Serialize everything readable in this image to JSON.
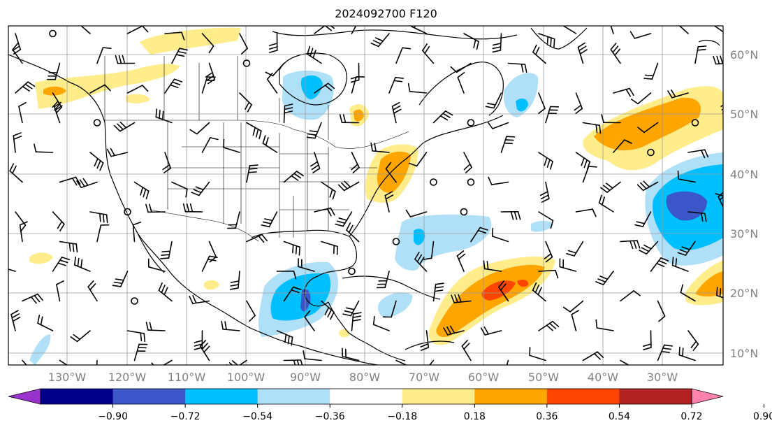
{
  "title": "2024092700 F120",
  "lon_labels": [
    "130°W",
    "120°W",
    "110°W",
    "100°W",
    "90°W",
    "80°W",
    "70°W",
    "60°W",
    "50°W",
    "40°W",
    "30°W"
  ],
  "lat_labels": [
    "60°N",
    "50°N",
    "40°N",
    "30°N",
    "20°N",
    "10°N"
  ],
  "colorbar": {
    "ticks": [
      "−0.90",
      "−0.72",
      "−0.54",
      "−0.36",
      "−0.18",
      "0.18",
      "0.36",
      "0.54",
      "0.72",
      "0.90"
    ],
    "colors": [
      "#9a32cd",
      "#00008b",
      "#3a56c8",
      "#00bfff",
      "#b0e0f8",
      "#ffffff",
      "#ffec8b",
      "#ffa500",
      "#ff4500",
      "#b22222",
      "#ff82ab"
    ],
    "extend": "both"
  },
  "map": {
    "projection": "PlateCarree",
    "lon_range": [
      -140,
      -20
    ],
    "lat_range": [
      8,
      65
    ],
    "gridlines": true,
    "overlay": "wind-barbs",
    "coastlines": true,
    "borders": "countries and US states"
  }
}
